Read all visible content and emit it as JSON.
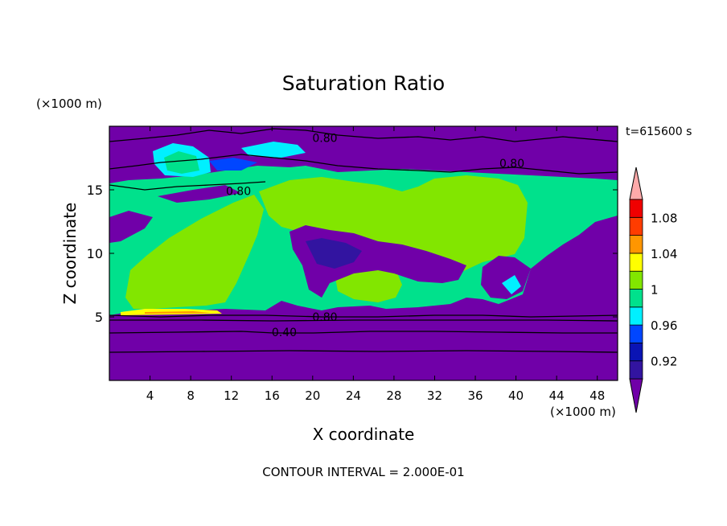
{
  "chart_data": {
    "type": "heatmap",
    "title": "Saturation Ratio",
    "xlabel": "X coordinate",
    "ylabel": "Z coordinate",
    "x_unit": "(×1000 m)",
    "y_unit": "(×1000 m)",
    "time_label": "t=615600 s",
    "footer": "CONTOUR INTERVAL = 2.000E-01",
    "xlim": [
      0,
      50
    ],
    "ylim": [
      0,
      20
    ],
    "x_ticks": [
      4,
      8,
      12,
      16,
      20,
      24,
      28,
      32,
      36,
      40,
      44,
      48
    ],
    "y_ticks": [
      5,
      10,
      15
    ],
    "colorbar": {
      "tick_labels": [
        "0.92",
        "0.96",
        "1",
        "1.04",
        "1.08"
      ],
      "levels": [
        0.9,
        0.92,
        0.94,
        0.96,
        0.98,
        1.0,
        1.02,
        1.04,
        1.06,
        1.08,
        1.1
      ],
      "colors": [
        "#7000a8",
        "#3214a0",
        "#0a14b4",
        "#0046ff",
        "#00f0ff",
        "#00e18c",
        "#82e600",
        "#ffff00",
        "#ff9600",
        "#ff3c00",
        "#f00000",
        "#ffaaaa"
      ]
    },
    "contour_labels": [
      {
        "text": "0.80",
        "x": 21.2,
        "z": 18.9
      },
      {
        "text": "0.80",
        "x": 39.6,
        "z": 16.9
      },
      {
        "text": "0.80",
        "x": 12.7,
        "z": 14.7
      },
      {
        "text": "0.80",
        "x": 21.2,
        "z": 4.8
      },
      {
        "text": "0.40",
        "x": 17.2,
        "z": 3.6
      }
    ]
  }
}
